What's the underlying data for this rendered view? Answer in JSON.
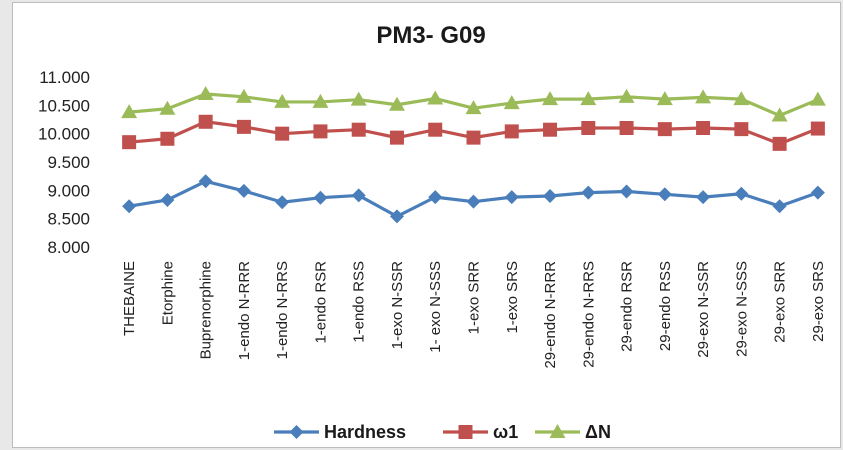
{
  "chart_data": {
    "type": "line",
    "title": "PM3- G09",
    "xlabel": "",
    "ylabel": "",
    "ylim": [
      8.0,
      11.0
    ],
    "ytick_values": [
      8.0,
      8.5,
      9.0,
      9.5,
      10.0,
      10.5,
      11.0
    ],
    "ytick_labels": [
      "8.000",
      "8.500",
      "9.000",
      "9.500",
      "10.000",
      "10.500",
      "11.000"
    ],
    "grid": false,
    "legend_position": "bottom",
    "categories": [
      "THEBAINE",
      "Etorphine",
      "Buprenorphine",
      "1-endo N-RRR",
      "1-endo N-RRS",
      "1-endo RSR",
      "1-endo RSS",
      "1-exo N-SSR",
      "1- exo N-SSS",
      "1-exo SRR",
      "1-exo SRS",
      "29-endo N-RRR",
      "29-endo N-RRS",
      "29-endo RSR",
      "29-endo RSS",
      "29-exo N-SSR",
      "29-exo N-SSS",
      "29-exo SRR",
      "29-exo SRS"
    ],
    "series": [
      {
        "name": "Hardness",
        "color": "#4a7ebb",
        "marker": "diamond",
        "values": [
          8.72,
          8.83,
          9.16,
          8.99,
          8.79,
          8.87,
          8.91,
          8.54,
          8.88,
          8.8,
          8.88,
          8.9,
          8.96,
          8.98,
          8.93,
          8.88,
          8.94,
          8.72,
          8.96
        ]
      },
      {
        "name": "ω1",
        "color": "#c0504d",
        "marker": "square",
        "values": [
          9.85,
          9.91,
          10.21,
          10.12,
          10.0,
          10.04,
          10.07,
          9.93,
          10.07,
          9.93,
          10.04,
          10.07,
          10.1,
          10.1,
          10.08,
          10.1,
          10.08,
          9.82,
          10.09
        ]
      },
      {
        "name": "ΔN",
        "color": "#9bbb59",
        "marker": "triangle",
        "values": [
          10.38,
          10.44,
          10.7,
          10.65,
          10.56,
          10.56,
          10.6,
          10.51,
          10.62,
          10.45,
          10.54,
          10.61,
          10.61,
          10.65,
          10.61,
          10.64,
          10.61,
          10.32,
          10.6
        ]
      }
    ]
  }
}
